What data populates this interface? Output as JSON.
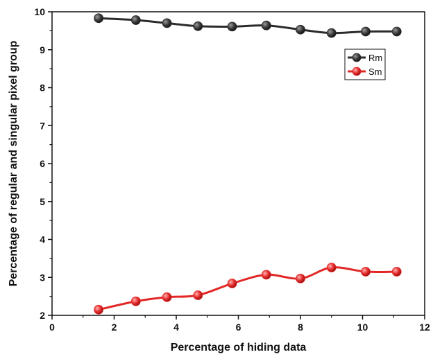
{
  "chart_data": {
    "type": "line",
    "title": "",
    "xlabel": "Percentage of hiding data",
    "ylabel": "Percentage of regular and singular pixel group",
    "xlim": [
      0,
      12
    ],
    "ylim": [
      2,
      10
    ],
    "xticks": [
      0,
      2,
      4,
      6,
      8,
      10,
      12
    ],
    "yticks": [
      2,
      3,
      4,
      5,
      6,
      7,
      8,
      9,
      10
    ],
    "grid": false,
    "legend_position": "top-right",
    "series": [
      {
        "name": "Rm",
        "color": "#2b2b2b",
        "marker": "sphere",
        "x": [
          1.5,
          2.7,
          3.7,
          4.7,
          5.8,
          6.9,
          8.0,
          9.0,
          10.1,
          11.1
        ],
        "y": [
          9.83,
          9.78,
          9.7,
          9.62,
          9.61,
          9.64,
          9.53,
          9.44,
          9.48,
          9.48
        ]
      },
      {
        "name": "Sm",
        "color": "#e32626",
        "marker": "sphere",
        "x": [
          1.5,
          2.7,
          3.7,
          4.7,
          5.8,
          6.9,
          8.0,
          9.0,
          10.1,
          11.1
        ],
        "y": [
          2.15,
          2.37,
          2.48,
          2.53,
          2.84,
          3.07,
          2.97,
          3.26,
          3.15,
          3.15
        ]
      }
    ]
  }
}
